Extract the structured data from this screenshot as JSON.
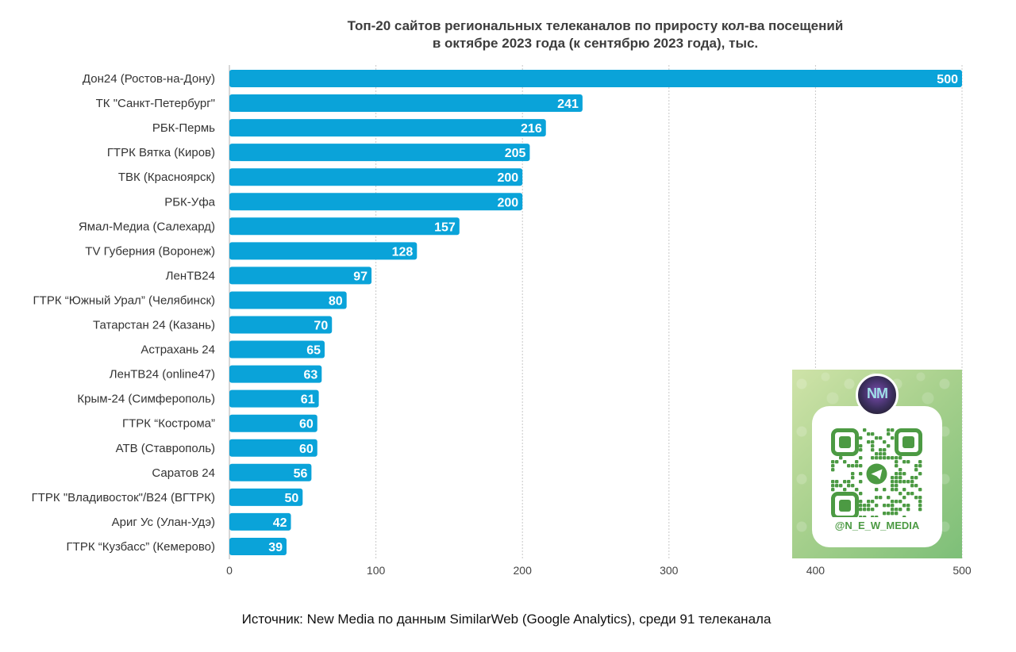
{
  "title_lines": [
    "Топ-20 сайтов региональных телеканалов по приросту кол-ва посещений",
    "в октябре 2023 года (к сентябрю 2023 года), тыс."
  ],
  "source": "Источник: New Media по данным SimilarWeb (Google Analytics), среди 91 телеканала",
  "colors": {
    "bar": "#0aa3d9",
    "grid": "#c8c8c8",
    "accent_green": "#4c9a43"
  },
  "qr_card": {
    "handle": "@N_E_W_MEDIA",
    "avatar_icon": "new-media-logo",
    "qr_icon": "telegram-qr-code"
  },
  "chart_data": {
    "type": "bar",
    "orientation": "horizontal",
    "categories": [
      "Дон24 (Ростов-на-Дону)",
      "ТК \"Санкт-Петербург\"",
      "РБК-Пермь",
      "ГТРК Вятка (Киров)",
      "ТВК (Красноярск)",
      "РБК-Уфа",
      "Ямал-Медиа (Салехард)",
      "TV Губерния (Воронеж)",
      "ЛенТВ24",
      "ГТРК “Южный Урал” (Челябинск)",
      "Татарстан 24 (Казань)",
      "Астрахань 24",
      "ЛенТВ24 (online47)",
      "Крым-24 (Симферополь)",
      "ГТРК “Кострома”",
      "АТВ (Ставрополь)",
      "Саратов 24",
      "ГТРК \"Владивосток\"/В24 (ВГТРК)",
      "Ариг Ус (Улан-Удэ)",
      "ГТРК “Кузбасс” (Кемерово)"
    ],
    "values": [
      500,
      241,
      216,
      205,
      200,
      200,
      157,
      128,
      97,
      80,
      70,
      65,
      63,
      61,
      60,
      60,
      56,
      50,
      42,
      39
    ],
    "xlim": [
      0,
      500
    ],
    "xticks": [
      0,
      100,
      200,
      300,
      400,
      500
    ],
    "grid": true,
    "xlabel": "",
    "ylabel": ""
  }
}
